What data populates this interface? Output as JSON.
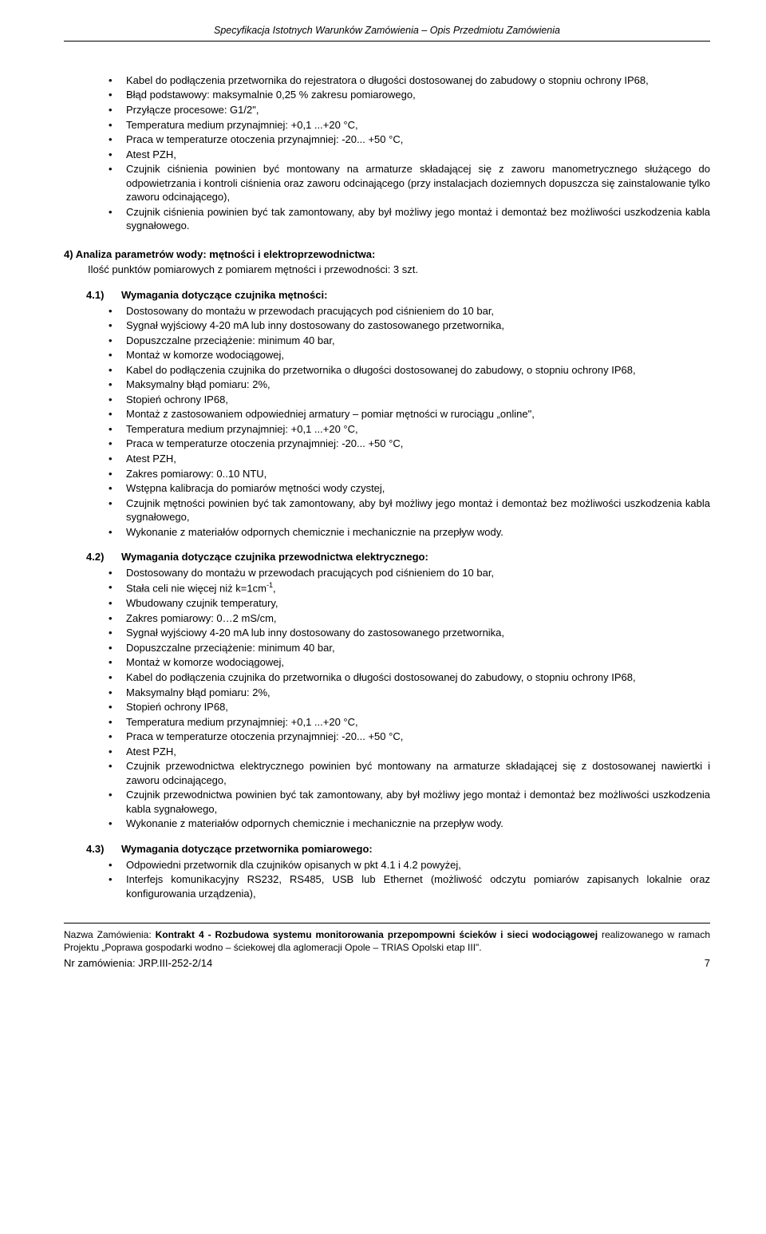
{
  "header": "Specyfikacja Istotnych Warunków Zamówienia – Opis Przedmiotu Zamówienia",
  "block1": [
    "Kabel do podłączenia przetwornika do rejestratora o długości dostosowanej do zabudowy o stopniu ochrony IP68,",
    "Błąd podstawowy: maksymalnie 0,25 % zakresu pomiarowego,",
    "Przyłącze procesowe: G1/2\",",
    "Temperatura medium przynajmniej: +0,1 ...+20 °C,",
    "Praca w temperaturze otoczenia przynajmniej: -20... +50 °C,",
    "Atest PZH,",
    "Czujnik ciśnienia powinien być montowany na armaturze składającej się z zaworu manometrycznego służącego do odpowietrzania i kontroli ciśnienia oraz zaworu odcinającego (przy instalacjach doziemnych dopuszcza się zainstalowanie tylko zaworu odcinającego),",
    "Czujnik ciśnienia powinien być tak zamontowany, aby był możliwy jego montaż i demontaż bez możliwości uszkodzenia kabla sygnałowego."
  ],
  "sec4": {
    "title": "4)  Analiza parametrów wody: mętności i elektroprzewodnictwa:",
    "sub": "Ilość punktów pomiarowych z pomiarem mętności i przewodności: 3 szt."
  },
  "s41": {
    "num": "4.1)",
    "label": "Wymagania dotyczące czujnika mętności:",
    "items": [
      "Dostosowany do montażu w przewodach pracujących pod ciśnieniem do 10 bar,",
      "Sygnał wyjściowy 4-20 mA lub inny dostosowany do zastosowanego przetwornika,",
      "Dopuszczalne przeciążenie: minimum 40 bar,",
      "Montaż w komorze wodociągowej,",
      "Kabel do podłączenia czujnika do przetwornika o długości dostosowanej do zabudowy, o stopniu ochrony IP68,",
      "Maksymalny błąd pomiaru: 2%,",
      "Stopień ochrony IP68,",
      "Montaż z zastosowaniem odpowiedniej armatury – pomiar mętności w rurociągu „online\",",
      "Temperatura medium przynajmniej: +0,1 ...+20 °C,",
      "Praca w temperaturze otoczenia przynajmniej: -20... +50 °C,",
      "Atest PZH,",
      "Zakres pomiarowy: 0..10 NTU,",
      "Wstępna kalibracja do pomiarów mętności wody czystej,",
      "Czujnik mętności powinien być tak zamontowany, aby był możliwy jego montaż i demontaż bez możliwości uszkodzenia kabla sygnałowego,",
      "Wykonanie z materiałów odpornych chemicznie i mechanicznie na przepływ wody."
    ]
  },
  "s42": {
    "num": "4.2)",
    "label": "Wymagania dotyczące czujnika przewodnictwa elektrycznego:",
    "items": [
      "Dostosowany do montażu w przewodach pracujących pod ciśnieniem do 10 bar,",
      "Stała celi nie więcej niż k=1cm",
      "Wbudowany czujnik temperatury,",
      "Zakres pomiarowy: 0…2 mS/cm,",
      "Sygnał wyjściowy 4-20 mA lub inny dostosowany do zastosowanego przetwornika,",
      "Dopuszczalne przeciążenie: minimum 40 bar,",
      "Montaż w komorze wodociągowej,",
      "Kabel do podłączenia czujnika do przetwornika o długości dostosowanej do zabudowy, o stopniu ochrony IP68,",
      "Maksymalny błąd pomiaru: 2%,",
      "Stopień ochrony IP68,",
      "Temperatura medium przynajmniej: +0,1 ...+20 °C,",
      "Praca w temperaturze otoczenia przynajmniej: -20... +50 °C,",
      "Atest PZH,",
      "Czujnik przewodnictwa elektrycznego powinien być montowany na armaturze składającej się z  dostosowanej nawiertki i zaworu odcinającego,",
      "Czujnik przewodnictwa powinien być tak zamontowany, aby był możliwy jego montaż i demontaż bez możliwości uszkodzenia kabla sygnałowego,",
      "Wykonanie z materiałów odpornych chemicznie i mechanicznie na przepływ wody."
    ],
    "sup_index": 1,
    "sup_text": "-1",
    "sup_after": ","
  },
  "s43": {
    "num": "4.3)",
    "label": "Wymagania dotyczące przetwornika pomiarowego:",
    "items": [
      "Odpowiedni przetwornik dla czujników opisanych w pkt 4.1 i 4.2 powyżej,",
      "Interfejs komunikacyjny RS232, RS485, USB lub Ethernet (możliwość odczytu pomiarów zapisanych lokalnie oraz konfigurowania urządzenia),"
    ]
  },
  "footer": {
    "line1_prefix": "Nazwa Zamówienia: ",
    "line1_bold": "Kontrakt 4 - Rozbudowa systemu monitorowania przepompowni ścieków i sieci wodociągowej",
    "line1_rest": " realizowanego w ramach Projektu „Poprawa gospodarki wodno – ściekowej dla aglomeracji Opole – TRIAS Opolski etap III\".",
    "nr": "Nr zamówienia: JRP.III-252-2/14",
    "page": "7"
  }
}
